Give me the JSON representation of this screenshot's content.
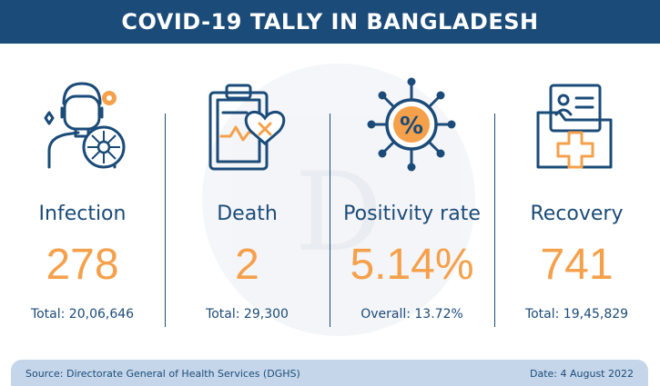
{
  "header": {
    "title": "COVID-19 TALLY IN BANGLADESH"
  },
  "watermark": {
    "letter": "D"
  },
  "stats": [
    {
      "label": "Infection",
      "value": "278",
      "sub": "Total: 20,06,646",
      "icon": "infection-icon"
    },
    {
      "label": "Death",
      "value": "2",
      "sub": "Total: 29,300",
      "icon": "clipboard-heart-icon"
    },
    {
      "label": "Positivity rate",
      "value": "5.14%",
      "sub": "Overall: 13.72%",
      "icon": "virus-percent-icon"
    },
    {
      "label": "Recovery",
      "value": "741",
      "sub": "Total: 19,45,829",
      "icon": "medical-folder-icon"
    }
  ],
  "footer": {
    "source": "Source: Directorate General of Health Services (DGHS)",
    "date": "Date: 4 August 2022"
  },
  "colors": {
    "navy": "#1b4b78",
    "orange": "#f5a04a",
    "footer_bg": "#c5d6ea"
  }
}
